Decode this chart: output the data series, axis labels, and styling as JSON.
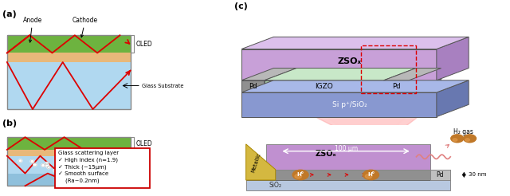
{
  "panel_a_label": "(a)",
  "panel_b_label": "(b)",
  "panel_c_label": "(c)",
  "arrow_color": "#dd0000",
  "red": "#dd0000",
  "green_color": "#6db33f",
  "peach_color": "#e8b87a",
  "lightblue_color": "#b0d8f0",
  "darkblue_color": "#8fc0dc",
  "gray_color": "#aaaaaa",
  "white": "#ffffff",
  "dot_color": "#ffffff",
  "ZSOx_color": "#c9a8d8",
  "ZSOx_side_color": "#a080b8",
  "ZSOx_top_color": "#d8c0e8",
  "IGZO_color": "#b0d8b0",
  "IGZO_side_color": "#90b890",
  "IGZO_top_color": "#c8e8c8",
  "Si_color": "#8090d0",
  "Si_side_color": "#6070b0",
  "Si_top_color": "#a0b0e0",
  "Pd_color": "#909090",
  "Pd_side_color": "#707070",
  "Pd_top_color": "#b0b0b0",
  "zsox_b_color": "#c090d0",
  "igzo_b_color": "#909090",
  "sio2_b_color": "#b8cce8",
  "pd_b_color": "#c0c0c0",
  "metallic_color": "#d4b840",
  "H_color": "#d09050",
  "annotation_edge": "#cc0000",
  "bg": "#ffffff"
}
